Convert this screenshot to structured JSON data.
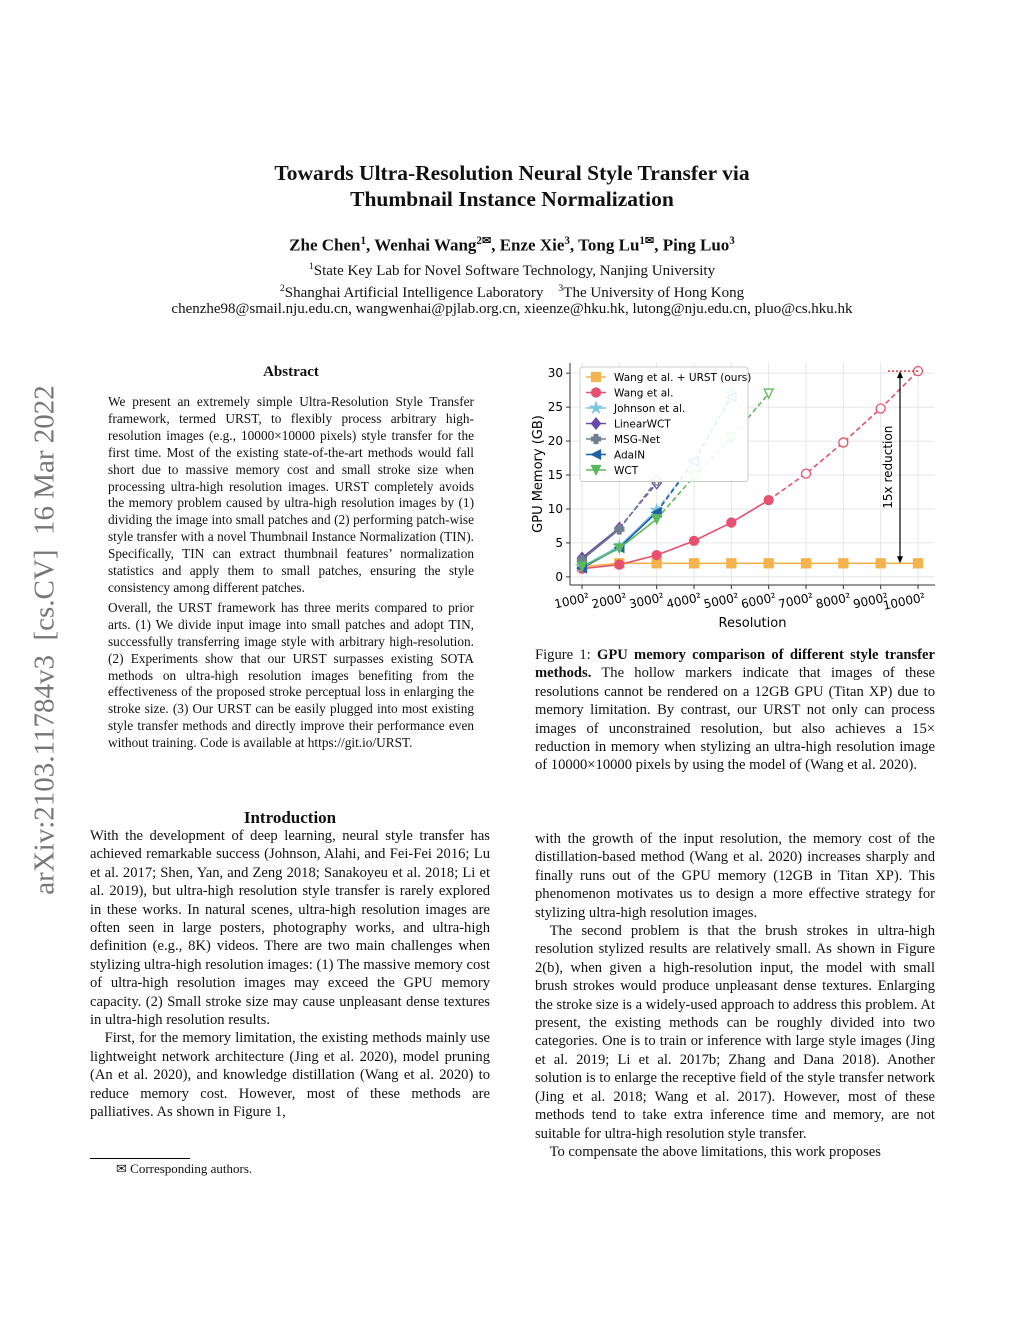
{
  "sidebar": "arXiv:2103.11784v3  [cs.CV]  16 Mar 2022",
  "header": {
    "title_lines": [
      "Towards Ultra-Resolution Neural Style Transfer via",
      "Thumbnail Instance Normalization"
    ],
    "authors": [
      {
        "name": "Zhe Chen",
        "sup": "1"
      },
      {
        "name": "Wenhai Wang",
        "sup": "2✉"
      },
      {
        "name": "Enze Xie",
        "sup": "3"
      },
      {
        "name": "Tong Lu",
        "sup": "1✉"
      },
      {
        "name": "Ping Luo",
        "sup": "3"
      }
    ],
    "affiliations": [
      [
        {
          "sup": "1",
          "text": "State Key Lab for Novel Software Technology, Nanjing University"
        }
      ],
      [
        {
          "sup": "2",
          "text": "Shanghai Artificial Intelligence Laboratory"
        },
        {
          "sup": "3",
          "text": "The University of Hong Kong"
        }
      ]
    ],
    "emails": "chenzhe98@smail.nju.edu.cn, wangwenhai@pjlab.org.cn, xieenze@hku.hk, lutong@nju.edu.cn, pluo@cs.hku.hk"
  },
  "abstract": {
    "heading": "Abstract",
    "paragraphs": [
      "We present an extremely simple Ultra-Resolution Style Transfer framework, termed URST, to flexibly process arbitrary high-resolution images (e.g., 10000×10000 pixels) style transfer for the first time. Most of the existing state-of-the-art methods would fall short due to massive memory cost and small stroke size when processing ultra-high resolution images. URST completely avoids the memory problem caused by ultra-high resolution images by (1) dividing the image into small patches and (2) performing patch-wise style transfer with a novel Thumbnail Instance Normalization (TIN). Specifically, TIN can extract thumbnail features’ normalization statistics and apply them to small patches, ensuring the style consistency among different patches.",
      "Overall, the URST framework has three merits compared to prior arts. (1) We divide input image into small patches and adopt TIN, successfully transferring image style with arbitrary high-resolution. (2) Experiments show that our URST surpasses existing SOTA methods on ultra-high resolution images benefiting from the effectiveness of the proposed stroke perceptual loss in enlarging the stroke size. (3) Our URST can be easily plugged into most existing style transfer methods and directly improve their performance even without training. Code is available at https://git.io/URST."
    ]
  },
  "introduction": {
    "heading": "Introduction",
    "paragraphs": [
      "With the development of deep learning, neural style transfer has achieved remarkable success (Johnson, Alahi, and Fei-Fei 2016; Lu et al. 2017; Shen, Yan, and Zeng 2018; Sanakoyeu et al. 2018; Li et al. 2019), but ultra-high resolution style transfer is rarely explored in these works. In natural scenes, ultra-high resolution images are often seen in large posters, photography works, and ultra-high definition (e.g., 8K) videos. There are two main challenges when stylizing ultra-high resolution images: (1) The massive memory cost of ultra-high resolution images may exceed the GPU memory capacity. (2) Small stroke size may cause unpleasant dense textures in ultra-high resolution results.",
      "First, for the memory limitation, the existing methods mainly use lightweight network architecture (Jing et al. 2020), model pruning (An et al. 2020), and knowledge distillation (Wang et al. 2020) to reduce memory cost. However, most of these methods are palliatives. As shown in Figure 1,"
    ],
    "right_paragraphs": [
      "with the growth of the input resolution, the memory cost of the distillation-based method (Wang et al. 2020) increases sharply and finally runs out of the GPU memory (12GB in Titan XP). This phenomenon motivates us to design a more effective strategy for stylizing ultra-high resolution images.",
      "The second problem is that the brush strokes in ultra-high resolution stylized results are relatively small. As shown in Figure 2(b), when given a high-resolution input, the model with small brush strokes would produce unpleasant dense textures. Enlarging the stroke size is a widely-used approach to address this problem. At present, the existing methods can be roughly divided into two categories. One is to train or inference with large style images (Jing et al. 2019; Li et al. 2017b; Zhang and Dana 2018). Another solution is to enlarge the receptive field of the style transfer network (Jing et al. 2018; Wang et al. 2017). However, most of these methods tend to take extra inference time and memory, are not suitable for ultra-high resolution style transfer.",
      "To compensate the above limitations, this work proposes"
    ]
  },
  "footnote": "✉ Corresponding authors.",
  "caption": {
    "label": "Figure 1:",
    "bold": "GPU memory comparison of different style transfer methods.",
    "text": "The hollow markers indicate that images of these resolutions cannot be rendered on a 12GB GPU (Titan XP) due to memory limitation. By contrast, our URST not only can process images of unconstrained resolution, but also achieves a 15× reduction in memory when stylizing an ultra-high resolution image of 10000×10000 pixels by using the model of (Wang et al. 2020)."
  },
  "chart_data": {
    "type": "line",
    "x_label": "Resolution",
    "y_label": "GPU Memory (GB)",
    "annotation": "15x reduction",
    "categories": [
      "1000²",
      "2000²",
      "3000²",
      "4000²",
      "5000²",
      "6000²",
      "7000²",
      "8000²",
      "9000²",
      "10000²"
    ],
    "ylim": [
      -1.2,
      31.5
    ],
    "yticks": [
      0,
      5,
      10,
      15,
      20,
      25,
      30
    ],
    "grid": true,
    "legend": "upper left",
    "series": [
      {
        "name": "Wang et al. + URST (ours)",
        "color": "#f5b34f",
        "marker": "square",
        "values": [
          1.5,
          2,
          2,
          2,
          2,
          2,
          2,
          2,
          2,
          2
        ]
      },
      {
        "name": "Wang et al.",
        "color": "#e8506f",
        "marker": "circle",
        "hollow_from": 6,
        "values": [
          1.2,
          1.8,
          3.2,
          5.3,
          8,
          11.3,
          15.2,
          19.8,
          24.8,
          30.3
        ]
      },
      {
        "name": "Johnson et al.",
        "color": "#7cc4e4",
        "marker": "star",
        "hollow_from": 3,
        "values": [
          1.5,
          4.5,
          9.8,
          17,
          27,
          null,
          null,
          null,
          null,
          null
        ]
      },
      {
        "name": "LinearWCT",
        "color": "#6a4aa8",
        "marker": "diamond",
        "hollow_from": 2,
        "values": [
          2.8,
          7.2,
          13.8,
          null,
          null,
          null,
          null,
          null,
          null,
          null
        ]
      },
      {
        "name": "MSG-Net",
        "color": "#708090",
        "marker": "plus",
        "hollow_from": 2,
        "values": [
          2.5,
          7,
          14.2,
          null,
          null,
          null,
          null,
          null,
          null,
          null
        ]
      },
      {
        "name": "AdaIN",
        "color": "#1f5fa8",
        "marker": "triangle-left",
        "hollow_from": 3,
        "values": [
          1.3,
          4.3,
          9.5,
          17,
          26.5,
          null,
          null,
          null,
          null,
          null
        ]
      },
      {
        "name": "WCT",
        "color": "#5cb85c",
        "marker": "triangle-down",
        "hollow_from": 3,
        "values": [
          1.5,
          4.2,
          8.5,
          14.8,
          20.5,
          27,
          null,
          null,
          null,
          null
        ]
      }
    ]
  }
}
